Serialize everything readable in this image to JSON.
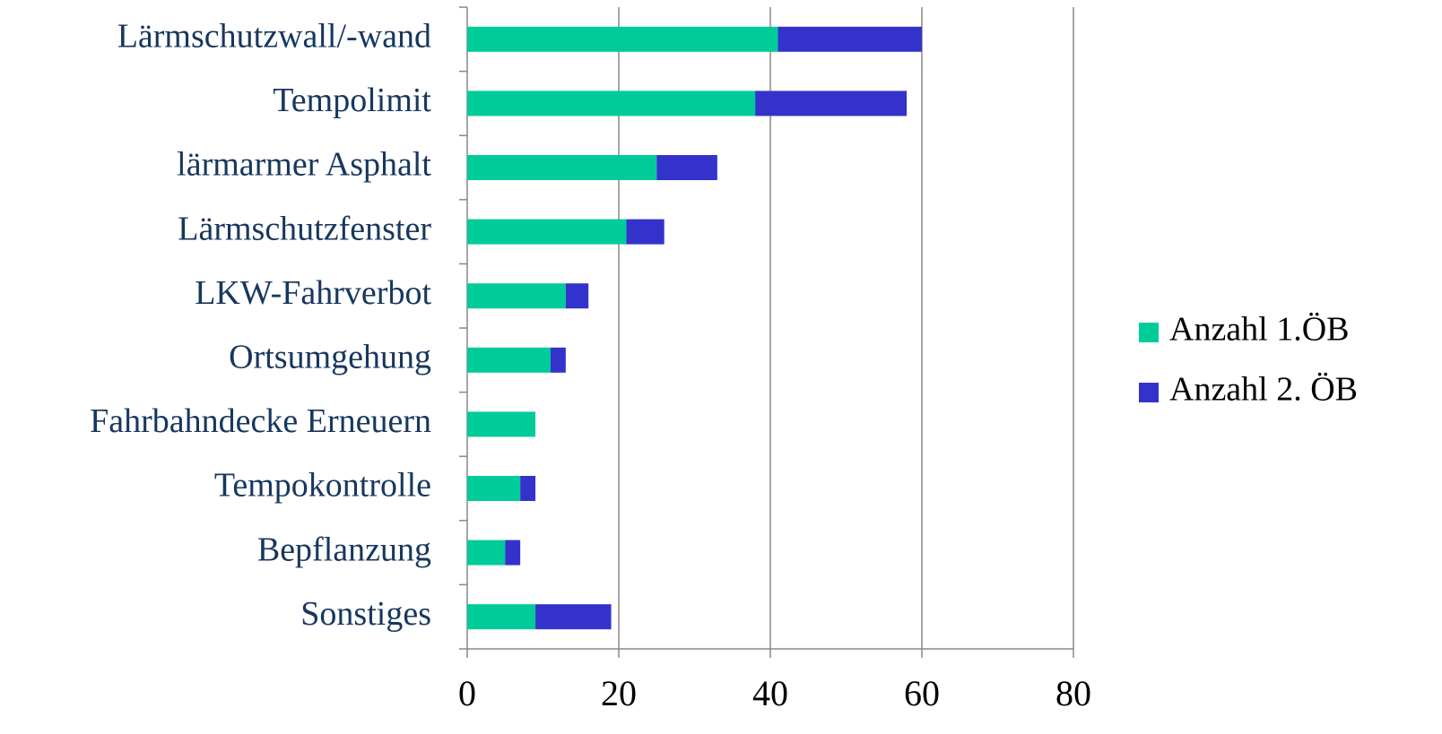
{
  "chart_data": {
    "type": "stacked-barh",
    "categories": [
      "Lärmschutzwall/-wand",
      "Tempolimit",
      "lärmarmer Asphalt",
      "Lärmschutzfenster",
      "LKW-Fahrverbot",
      "Ortsumgehung",
      "Fahrbahndecke Erneuern",
      "Tempokontrolle",
      "Bepflanzung",
      "Sonstiges"
    ],
    "series": [
      {
        "name": "Anzahl 1.ÖB",
        "color": "#00cc99",
        "values": [
          41,
          38,
          25,
          21,
          13,
          11,
          9,
          7,
          5,
          9
        ]
      },
      {
        "name": "Anzahl 2. ÖB",
        "color": "#3333cc",
        "values": [
          19,
          20,
          8,
          5,
          3,
          2,
          0,
          2,
          2,
          10
        ]
      }
    ],
    "xlim": [
      0,
      80
    ],
    "xticks": [
      0,
      20,
      40,
      60,
      80
    ],
    "grid": true,
    "legend": "right"
  }
}
